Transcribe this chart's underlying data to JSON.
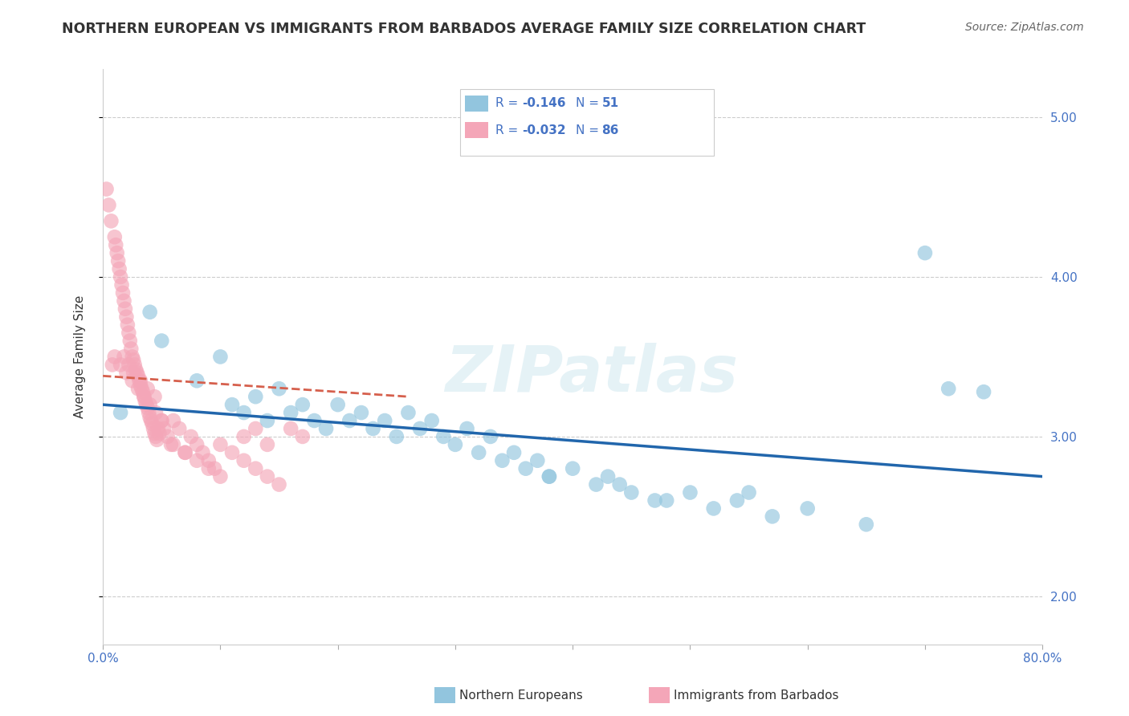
{
  "title": "NORTHERN EUROPEAN VS IMMIGRANTS FROM BARBADOS AVERAGE FAMILY SIZE CORRELATION CHART",
  "source": "Source: ZipAtlas.com",
  "ylabel": "Average Family Size",
  "xlim": [
    0.0,
    0.8
  ],
  "ylim": [
    1.7,
    5.3
  ],
  "yticks": [
    2.0,
    3.0,
    4.0,
    5.0
  ],
  "xticks": [
    0.0,
    0.1,
    0.2,
    0.3,
    0.4,
    0.5,
    0.6,
    0.7,
    0.8
  ],
  "xticklabels": [
    "0.0%",
    "",
    "",
    "",
    "",
    "",
    "",
    "",
    "80.0%"
  ],
  "yticklabels_right": [
    "2.00",
    "3.00",
    "4.00",
    "5.00"
  ],
  "blue_scatter_x": [
    0.015,
    0.04,
    0.05,
    0.08,
    0.1,
    0.11,
    0.12,
    0.13,
    0.14,
    0.15,
    0.16,
    0.17,
    0.18,
    0.19,
    0.2,
    0.21,
    0.22,
    0.23,
    0.24,
    0.25,
    0.26,
    0.27,
    0.28,
    0.29,
    0.3,
    0.31,
    0.32,
    0.33,
    0.34,
    0.35,
    0.36,
    0.37,
    0.38,
    0.4,
    0.42,
    0.43,
    0.45,
    0.47,
    0.5,
    0.52,
    0.54,
    0.57,
    0.6,
    0.65,
    0.7,
    0.72,
    0.38,
    0.44,
    0.48,
    0.55,
    0.75
  ],
  "blue_scatter_y": [
    3.15,
    3.78,
    3.6,
    3.35,
    3.5,
    3.2,
    3.15,
    3.25,
    3.1,
    3.3,
    3.15,
    3.2,
    3.1,
    3.05,
    3.2,
    3.1,
    3.15,
    3.05,
    3.1,
    3.0,
    3.15,
    3.05,
    3.1,
    3.0,
    2.95,
    3.05,
    2.9,
    3.0,
    2.85,
    2.9,
    2.8,
    2.85,
    2.75,
    2.8,
    2.7,
    2.75,
    2.65,
    2.6,
    2.65,
    2.55,
    2.6,
    2.5,
    2.55,
    2.45,
    4.15,
    3.3,
    2.75,
    2.7,
    2.6,
    2.65,
    3.28
  ],
  "pink_scatter_x": [
    0.003,
    0.005,
    0.007,
    0.008,
    0.01,
    0.011,
    0.012,
    0.013,
    0.014,
    0.015,
    0.016,
    0.017,
    0.018,
    0.019,
    0.02,
    0.021,
    0.022,
    0.023,
    0.024,
    0.025,
    0.026,
    0.027,
    0.028,
    0.029,
    0.03,
    0.031,
    0.032,
    0.033,
    0.034,
    0.035,
    0.036,
    0.037,
    0.038,
    0.039,
    0.04,
    0.041,
    0.042,
    0.043,
    0.044,
    0.045,
    0.046,
    0.047,
    0.048,
    0.05,
    0.052,
    0.055,
    0.058,
    0.06,
    0.065,
    0.07,
    0.075,
    0.08,
    0.085,
    0.09,
    0.095,
    0.1,
    0.11,
    0.12,
    0.13,
    0.14,
    0.15,
    0.16,
    0.17,
    0.01,
    0.015,
    0.02,
    0.025,
    0.03,
    0.035,
    0.04,
    0.045,
    0.05,
    0.06,
    0.07,
    0.08,
    0.09,
    0.1,
    0.12,
    0.13,
    0.14,
    0.018,
    0.022,
    0.026,
    0.032,
    0.038,
    0.044
  ],
  "pink_scatter_y": [
    4.55,
    4.45,
    4.35,
    3.45,
    4.25,
    4.2,
    4.15,
    4.1,
    4.05,
    4.0,
    3.95,
    3.9,
    3.85,
    3.8,
    3.75,
    3.7,
    3.65,
    3.6,
    3.55,
    3.5,
    3.48,
    3.45,
    3.42,
    3.4,
    3.38,
    3.35,
    3.32,
    3.3,
    3.28,
    3.25,
    3.22,
    3.2,
    3.18,
    3.15,
    3.12,
    3.1,
    3.08,
    3.05,
    3.02,
    3.0,
    2.98,
    3.05,
    3.02,
    3.1,
    3.05,
    3.0,
    2.95,
    3.1,
    3.05,
    2.9,
    3.0,
    2.95,
    2.9,
    2.85,
    2.8,
    2.95,
    2.9,
    2.85,
    2.8,
    2.75,
    2.7,
    3.05,
    3.0,
    3.5,
    3.45,
    3.4,
    3.35,
    3.3,
    3.25,
    3.2,
    3.15,
    3.1,
    2.95,
    2.9,
    2.85,
    2.8,
    2.75,
    3.0,
    3.05,
    2.95,
    3.5,
    3.45,
    3.4,
    3.35,
    3.3,
    3.25
  ],
  "blue_color": "#92c5de",
  "pink_color": "#f4a6b8",
  "blue_line_color": "#2166ac",
  "pink_line_color": "#d6604d",
  "blue_line_x0": 0.0,
  "blue_line_y0": 3.2,
  "blue_line_x1": 0.8,
  "blue_line_y1": 2.75,
  "pink_line_x0": 0.0,
  "pink_line_y0": 3.38,
  "pink_line_x1": 0.26,
  "pink_line_y1": 3.25,
  "grid_color": "#cccccc",
  "title_color": "#333333",
  "tick_color": "#4472c4",
  "watermark": "ZIPatlas",
  "title_fontsize": 12.5,
  "source_fontsize": 10,
  "ylabel_fontsize": 11,
  "legend_r1": "R = ",
  "legend_v1": "-0.146",
  "legend_n1": "N = ",
  "legend_nv1": "51",
  "legend_r2": "R = ",
  "legend_v2": "-0.032",
  "legend_n2": "N = ",
  "legend_nv2": "86"
}
